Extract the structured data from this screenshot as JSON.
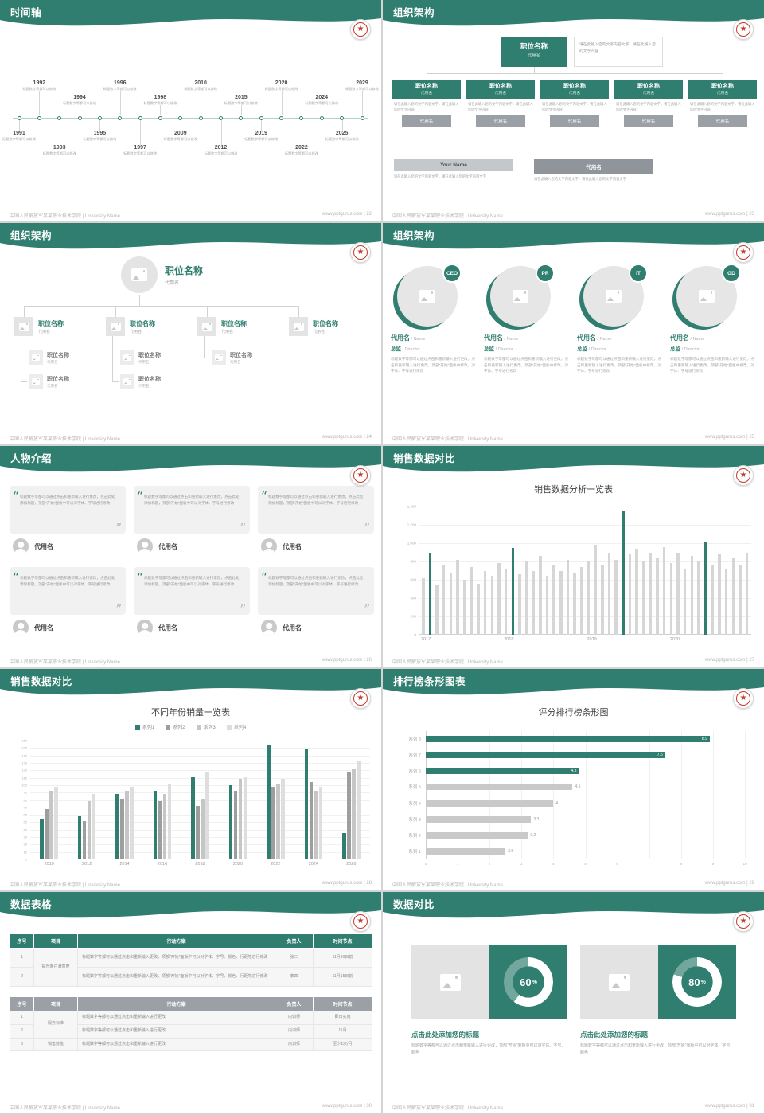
{
  "global": {
    "accent": "#2F7E6F",
    "accent_dark": "#256A5D",
    "gray_bar": "#c9c9c9",
    "footer_left": "中国人民解放军某某职业技术学院 | University Name",
    "site": "www.pptgurus.com"
  },
  "slides": {
    "timeline": {
      "title": "时间轴",
      "page": "22",
      "footer_right": "www.pptgurus.com | 22",
      "caption": "标题数字等都可以修改",
      "items": [
        {
          "year": "1991",
          "side": "bottom",
          "offset": "near"
        },
        {
          "year": "1992",
          "side": "top",
          "offset": "far"
        },
        {
          "year": "1993",
          "side": "bottom",
          "offset": "far"
        },
        {
          "year": "1994",
          "side": "top",
          "offset": "near"
        },
        {
          "year": "1995",
          "side": "bottom",
          "offset": "near"
        },
        {
          "year": "1996",
          "side": "top",
          "offset": "far"
        },
        {
          "year": "1997",
          "side": "bottom",
          "offset": "far"
        },
        {
          "year": "1998",
          "side": "top",
          "offset": "near"
        },
        {
          "year": "2009",
          "side": "bottom",
          "offset": "near"
        },
        {
          "year": "2010",
          "side": "top",
          "offset": "far"
        },
        {
          "year": "2012",
          "side": "bottom",
          "offset": "far"
        },
        {
          "year": "2015",
          "side": "top",
          "offset": "near"
        },
        {
          "year": "2019",
          "side": "bottom",
          "offset": "near"
        },
        {
          "year": "2020",
          "side": "top",
          "offset": "far"
        },
        {
          "year": "2022",
          "side": "bottom",
          "offset": "far"
        },
        {
          "year": "2024",
          "side": "top",
          "offset": "near"
        },
        {
          "year": "2025",
          "side": "bottom",
          "offset": "near"
        },
        {
          "year": "2029",
          "side": "top",
          "offset": "far"
        }
      ]
    },
    "org_boxes": {
      "title": "组织架构",
      "page": "23",
      "footer_right": "www.pptgurus.com | 23",
      "root": {
        "name": "职位名称",
        "alias": "代用名"
      },
      "root_note": "请在此输入您的文字内容文字，请在此输入您的文字内容",
      "columns": [
        {
          "name": "职位名称",
          "alias": "代用名",
          "note": "请在此输入您的文字内容文字，请在此输入您的文字内容",
          "tag": "代用名"
        },
        {
          "name": "职位名称",
          "alias": "代用名",
          "note": "请在此输入您的文字内容文字，请在此输入您的文字内容",
          "tag": "代用名"
        },
        {
          "name": "职位名称",
          "alias": "代用名",
          "note": "请在此输入您的文字内容文字，请在此输入您的文字内容",
          "tag": "代用名"
        },
        {
          "name": "职位名称",
          "alias": "代用名",
          "note": "请在此输入您的文字内容文字，请在此输入您的文字内容",
          "tag": "代用名"
        },
        {
          "name": "职位名称",
          "alias": "代用名",
          "note": "请在此输入您的文字内容文字，请在此输入您的文字内容",
          "tag": "代用名"
        }
      ],
      "bottom": [
        {
          "name": "Your Name",
          "style": "light",
          "note": "请在此输入您的文字内容文字，请在此输入您的文字内容文字"
        },
        {
          "name": "代用名",
          "style": "dark",
          "note": "请在此输入您的文字内容文字，请在此输入您的文字内容文字"
        }
      ]
    },
    "org_tree": {
      "title": "组织架构",
      "page": "24",
      "footer_right": "www.pptgurus.com | 24",
      "root": {
        "name": "职位名称",
        "alias": "代用名"
      },
      "branches": [
        {
          "name": "职位名称",
          "alias": "代用名",
          "children": [
            {
              "name": "职位名称",
              "alias": "代用名"
            },
            {
              "name": "职位名称",
              "alias": "代用名"
            }
          ]
        },
        {
          "name": "职位名称",
          "alias": "代用名",
          "children": [
            {
              "name": "职位名称",
              "alias": "代用名"
            },
            {
              "name": "职位名称",
              "alias": "代用名"
            }
          ]
        },
        {
          "name": "职位名称",
          "alias": "代用名",
          "children": [
            {
              "name": "职位名称",
              "alias": "代用名"
            }
          ]
        },
        {
          "name": "职位名称",
          "alias": "代用名",
          "children": []
        }
      ]
    },
    "org_members": {
      "title": "组织架构",
      "page": "25",
      "footer_right": "www.pptgurus.com | 25",
      "members": [
        {
          "badge": "CEO",
          "name": "代用名",
          "name_en": "/ Name",
          "role": "总监",
          "role_en": "/ Director",
          "desc": "标题数字等都可以通过点击和重新输入进行更改，点击和重新输入进行更改，顶部“开始”面板中修改，对字体、字号进行修改"
        },
        {
          "badge": "PR",
          "name": "代用名",
          "name_en": "/ Name",
          "role": "总监",
          "role_en": "/ Director",
          "desc": "标题数字等都可以通过点击和重新输入进行更改，点击和重新输入进行更改，顶部“开始”面板中修改，对字体、字号进行修改"
        },
        {
          "badge": "IT",
          "name": "代用名",
          "name_en": "/ Name",
          "role": "总监",
          "role_en": "/ Director",
          "desc": "标题数字等都可以通过点击和重新输入进行更改，点击和重新输入进行更改，顶部“开始”面板中修改，对字体、字号进行修改"
        },
        {
          "badge": "GD",
          "name": "代用名",
          "name_en": "/ Name",
          "role": "总监",
          "role_en": "/ Director",
          "desc": "标题数字等都可以通过点击和重新输入进行更改，点击和重新输入进行更改，顶部“开始”面板中修改，对字体、字号进行修改"
        }
      ]
    },
    "people": {
      "title": "人物介绍",
      "page": "26",
      "footer_right": "www.pptgurus.com | 26",
      "cards": [
        {
          "quote": "标题数字等都可以通过点击和重新输入进行更改，点击此处添加标题，顶部“开始”面板中可以对字体、字号进行修改",
          "name": "代用名"
        },
        {
          "quote": "标题数字等都可以通过点击和重新输入进行更改，点击此处添加标题，顶部“开始”面板中可以对字体、字号进行修改",
          "name": "代用名"
        },
        {
          "quote": "标题数字等都可以通过点击和重新输入进行更改，点击此处添加标题，顶部“开始”面板中可以对字体、字号进行修改",
          "name": "代用名"
        },
        {
          "quote": "标题数字等都可以通过点击和重新输入进行更改，点击此处添加标题，顶部“开始”面板中可以对字体、字号进行修改",
          "name": "代用名"
        },
        {
          "quote": "标题数字等都可以通过点击和重新输入进行更改，点击此处添加标题，顶部“开始”面板中可以对字体、字号进行修改",
          "name": "代用名"
        },
        {
          "quote": "标题数字等都可以通过点击和重新输入进行更改，点击此处添加标题，顶部“开始”面板中可以对字体、字号进行修改",
          "name": "代用名"
        }
      ]
    },
    "sales_monthly": {
      "title": "销售数据对比",
      "page": "27",
      "footer_right": "www.pptgurus.com | 27"
    },
    "sales_yearly": {
      "title": "销售数据对比",
      "page": "28",
      "footer_right": "www.pptgurus.com | 28"
    },
    "ranking": {
      "title": "排行榜条形图表",
      "page": "29",
      "footer_right": "www.pptgurus.com | 29"
    },
    "tables": {
      "title": "数据表格",
      "page": "30",
      "footer_right": "www.pptgurus.com | 30",
      "t1": {
        "header": [
          "序号",
          "项目",
          "行动方案",
          "负责人",
          "时间节点"
        ],
        "project": "提升客户满意度",
        "rows": [
          {
            "no": "1",
            "plan": "标题数字等都可以通过点击和重新输入更改，顶部“开始”面板中可以对字体、字号、颜色、行距等进行修改",
            "owner": "张三",
            "time": "11月30日前"
          },
          {
            "no": "2",
            "plan": "标题数字等都可以通过点击和重新输入更改，顶部“开始”面板中可以对字体、字号、颜色、行距等进行修改",
            "owner": "李四",
            "time": "11月15日前"
          }
        ]
      },
      "t2": {
        "header": [
          "序号",
          "项目",
          "行动方案",
          "负责人",
          "时间节点"
        ],
        "project_a": "服务标准",
        "project_b": "销售技能",
        "rows": [
          {
            "no": "1",
            "plan": "标题数字等都可以通过点击和重新输入进行更改",
            "owner": "内训师",
            "time": "即日实施"
          },
          {
            "no": "2",
            "plan": "标题数字等都可以通过点击和重新输入进行更改",
            "owner": "内训师",
            "time": "11月"
          },
          {
            "no": "3",
            "plan": "标题数字等都可以通过点击和重新输入进行更改",
            "owner": "内训师",
            "time": "至少1次/月"
          }
        ]
      }
    },
    "compare": {
      "title": "数据对比",
      "page": "31",
      "footer_right": "www.pptgurus.com | 31",
      "cards": [
        {
          "percent": 60,
          "percent_label": "60",
          "percent_sign": "%",
          "heading": "点击此处添加您的标题",
          "desc": "标题数字等都可以通过点击和重新输入进行更改，顶部“开始”面板中可以对字体、字号、颜色"
        },
        {
          "percent": 80,
          "percent_label": "80",
          "percent_sign": "%",
          "heading": "点击此处添加您的标题",
          "desc": "标题数字等都可以通过点击和重新输入进行更改，顶部“开始”面板中可以对字体、字号、颜色"
        }
      ]
    }
  },
  "chart_data": [
    {
      "type": "bar",
      "title": "销售数据分析一览表",
      "x_groups": [
        "2017",
        "2018",
        "2019",
        "2020"
      ],
      "values": [
        620,
        900,
        540,
        760,
        680,
        820,
        600,
        740,
        560,
        700,
        640,
        780,
        720,
        950,
        660,
        800,
        700,
        860,
        640,
        760,
        700,
        820,
        680,
        740,
        800,
        980,
        760,
        900,
        820,
        1350,
        880,
        940,
        800,
        900,
        840,
        960,
        780,
        900,
        720,
        860,
        800,
        1020,
        760,
        880,
        720,
        840,
        760,
        900
      ],
      "highlights": [
        1,
        13,
        29,
        41
      ],
      "ylim": [
        0,
        1400
      ],
      "ytick": 200,
      "bar_color": "#d6d6d6",
      "highlight_color": "#2F7E6F",
      "grid": true
    },
    {
      "type": "bar",
      "title": "不同年份销量一览表",
      "categories": [
        "2010",
        "2012",
        "2014",
        "2016",
        "2018",
        "2020",
        "2022",
        "2024",
        "2026"
      ],
      "series": [
        {
          "name": "系列1",
          "color": "#2F7E6F",
          "values": [
            55,
            58,
            88,
            92,
            112,
            100,
            155,
            148,
            35
          ]
        },
        {
          "name": "系列2",
          "color": "#9e9e9e",
          "values": [
            68,
            52,
            82,
            78,
            72,
            92,
            98,
            104,
            118
          ]
        },
        {
          "name": "系列3",
          "color": "#c6c6c6",
          "values": [
            92,
            78,
            92,
            88,
            82,
            108,
            102,
            92,
            122
          ]
        },
        {
          "name": "系列4",
          "color": "#dedede",
          "values": [
            98,
            88,
            98,
            102,
            118,
            112,
            108,
            98,
            132
          ]
        }
      ],
      "ylim": [
        0,
        160
      ],
      "ytick": 10,
      "legend_position": "top",
      "grid": true
    },
    {
      "type": "bar-horizontal",
      "title": "评分排行榜条形图",
      "categories": [
        "系列 8",
        "系列 7",
        "系列 6",
        "系列 5",
        "系列 4",
        "系列 3",
        "系列 2",
        "系列 1"
      ],
      "values": [
        8.9,
        7.5,
        4.8,
        4.6,
        4,
        3.3,
        3.2,
        2.5
      ],
      "xlim": [
        0,
        10
      ],
      "xtick": 1,
      "highlight_count": 3,
      "bar_color": "#c9c9c9",
      "highlight_color": "#2F7E6F",
      "grid": true
    },
    {
      "type": "donut",
      "values": [
        60,
        80
      ],
      "unit": "%",
      "labels": [
        "点击此处添加您的标题",
        "点击此处添加您的标题"
      ]
    }
  ]
}
